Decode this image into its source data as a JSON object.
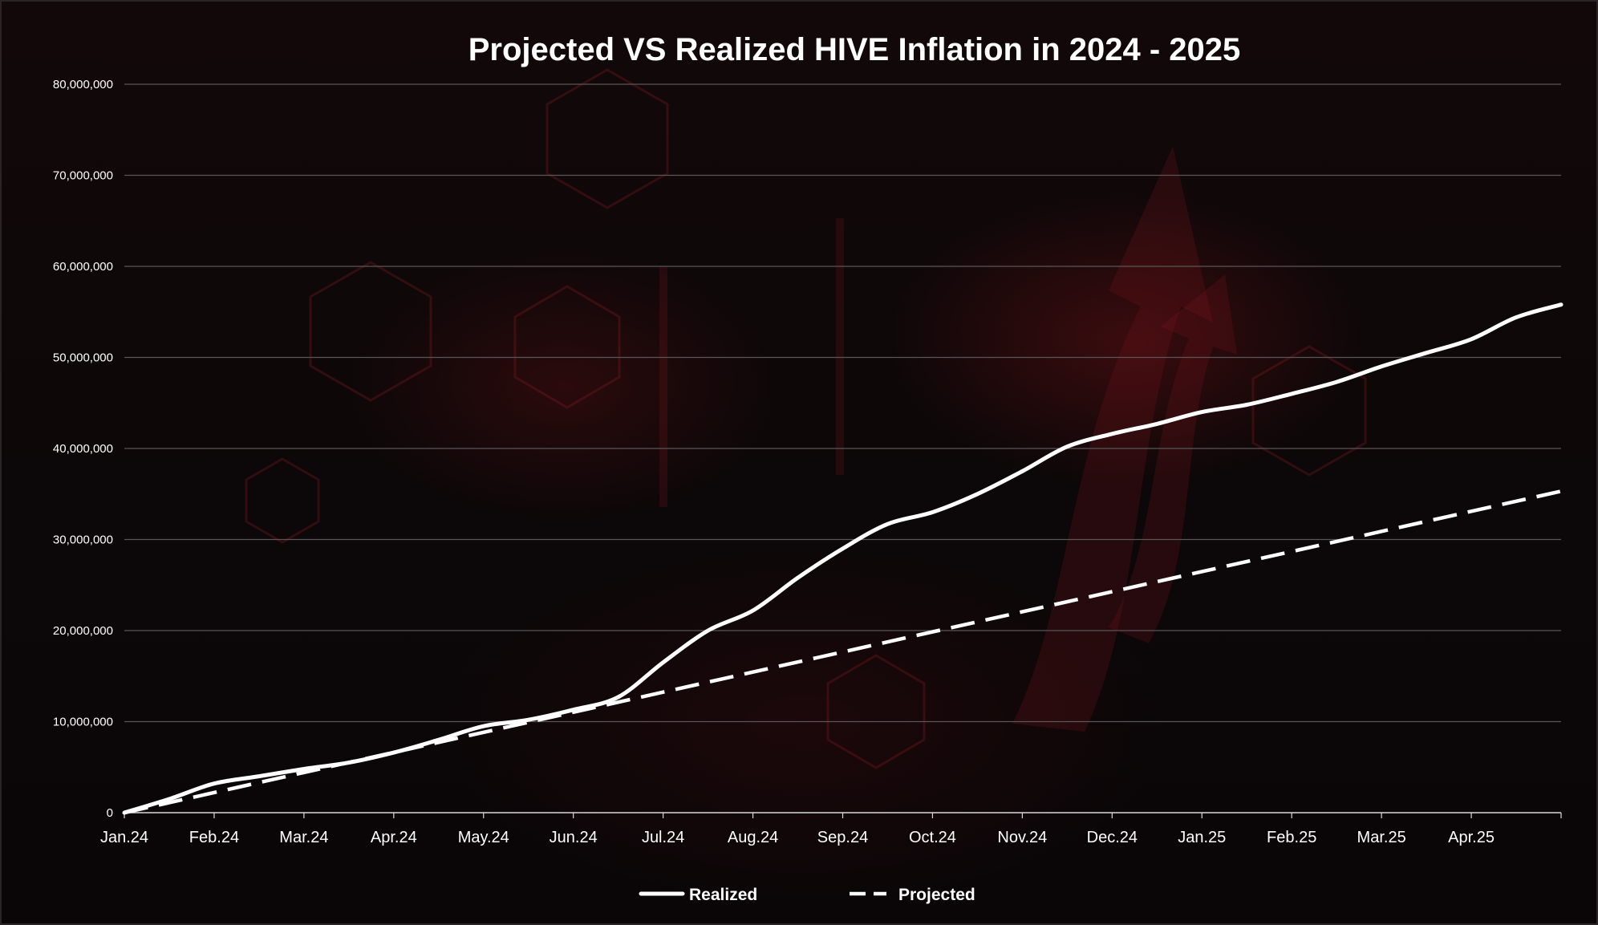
{
  "chart_data": {
    "type": "line",
    "title": "Projected VS Realized HIVE Inflation in 2024 - 2025",
    "xlabel": "",
    "ylabel": "",
    "ylim": [
      0,
      80000000
    ],
    "y_ticks": [
      0,
      10000000,
      20000000,
      30000000,
      40000000,
      50000000,
      60000000,
      70000000,
      80000000
    ],
    "y_tick_labels": [
      "0",
      "10,000,000",
      "20,000,000",
      "30,000,000",
      "40,000,000",
      "50,000,000",
      "60,000,000",
      "70,000,000",
      "80,000,000"
    ],
    "x_unit": "month index from Jan.24",
    "xlim": [
      0,
      16
    ],
    "x_tick_labels": [
      "Jan.24",
      "Feb.24",
      "Mar.24",
      "Apr.24",
      "May.24",
      "Jun.24",
      "Jul.24",
      "Aug.24",
      "Sep.24",
      "Oct.24",
      "Nov.24",
      "Dec.24",
      "Jan.25",
      "Feb.25",
      "Mar.25",
      "Apr.25"
    ],
    "x_tick_positions": [
      0,
      1,
      2,
      3,
      4,
      5,
      6,
      7,
      8,
      9,
      10,
      11,
      12,
      13,
      14,
      15
    ],
    "grid": true,
    "legend_position": "bottom-center",
    "series": [
      {
        "name": "Realized",
        "style": "solid",
        "color": "#ffffff",
        "x": [
          0,
          0.5,
          1,
          1.5,
          2,
          2.5,
          3,
          3.5,
          4,
          4.5,
          5,
          5.5,
          6,
          6.5,
          7,
          7.5,
          8,
          8.5,
          9,
          9.5,
          10,
          10.5,
          11,
          11.5,
          12,
          12.5,
          13,
          13.5,
          14,
          14.5,
          15,
          15.5,
          16
        ],
        "values": [
          0,
          1500000,
          3200000,
          4000000,
          4800000,
          5500000,
          6600000,
          8000000,
          9500000,
          10200000,
          11300000,
          12700000,
          16500000,
          20000000,
          22200000,
          25800000,
          29000000,
          31700000,
          33000000,
          35000000,
          37500000,
          40200000,
          41600000,
          42700000,
          44000000,
          44800000,
          46000000,
          47300000,
          49000000,
          50500000,
          52000000,
          54400000,
          55800000
        ]
      },
      {
        "name": "Projected",
        "style": "dashed",
        "color": "#ffffff",
        "x": [
          0,
          16
        ],
        "values": [
          0,
          35300000
        ]
      }
    ]
  }
}
